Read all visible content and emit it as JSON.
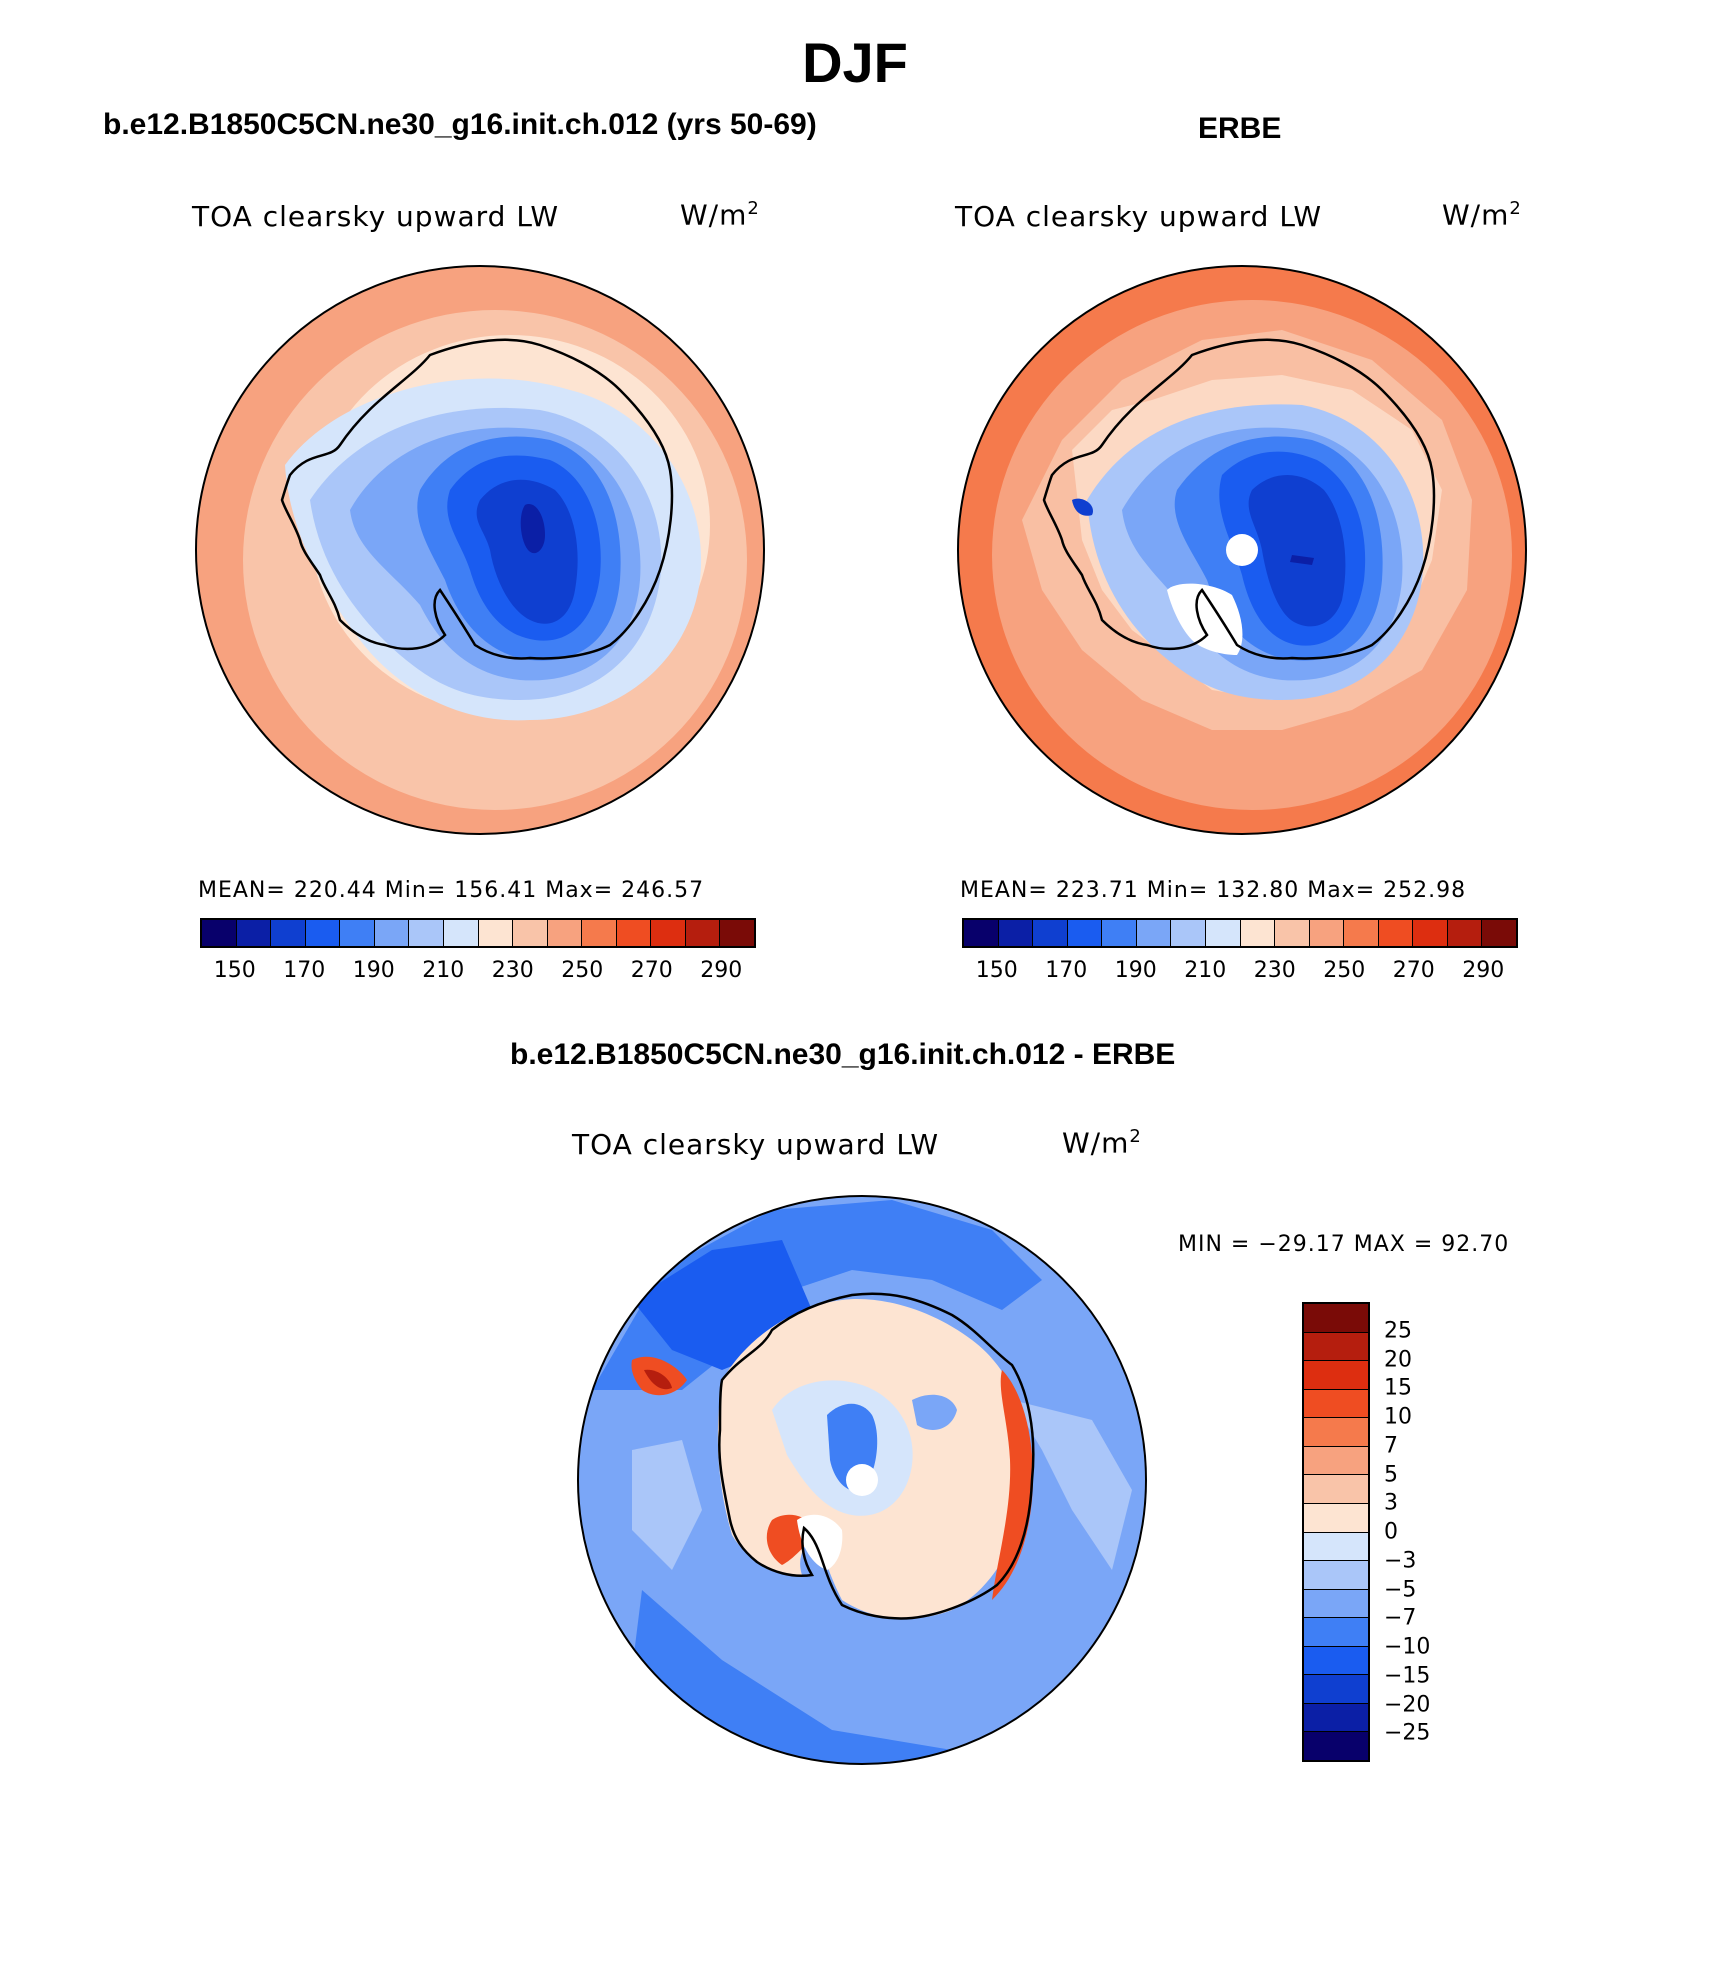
{
  "page_title": "DJF",
  "palette_levels": [
    "#08006b",
    "#0b1fa6",
    "#0f3fd0",
    "#1a5cf0",
    "#3f7ff5",
    "#7aa6f7",
    "#aac6f9",
    "#d5e5fb",
    "#fde4d2",
    "#f9c4a9",
    "#f7a27f",
    "#f57a4c",
    "#ef4d22",
    "#dd2e10",
    "#b51e0e",
    "#7a0b07"
  ],
  "diff_palette_levels": [
    "#7a0b07",
    "#b51e0e",
    "#dd2e10",
    "#ef4d22",
    "#f57a4c",
    "#f7a27f",
    "#f9c4a9",
    "#fde4d2",
    "#d5e5fb",
    "#aac6f9",
    "#7aa6f7",
    "#3f7ff5",
    "#1a5cf0",
    "#0f3fd0",
    "#0b1fa6",
    "#08006b"
  ],
  "panels": {
    "model": {
      "title": "b.e12.B1850C5CN.ne30_g16.init.ch.012 (yrs 50-69)",
      "variable": "TOA clearsky upward LW",
      "units_base": "W/m",
      "units_exp": "2",
      "stats": "MEAN= 220.44   Min= 156.41   Max= 246.57",
      "colorbar_ticks": [
        "150",
        "170",
        "190",
        "210",
        "230",
        "250",
        "270",
        "290"
      ]
    },
    "obs": {
      "title": "ERBE",
      "variable": "TOA clearsky upward LW",
      "units_base": "W/m",
      "units_exp": "2",
      "stats": "MEAN= 223.71   Min= 132.80   Max= 252.98",
      "colorbar_ticks": [
        "150",
        "170",
        "190",
        "210",
        "230",
        "250",
        "270",
        "290"
      ]
    },
    "diff": {
      "title": "b.e12.B1850C5CN.ne30_g16.init.ch.012 - ERBE",
      "variable": "TOA clearsky upward LW",
      "units_base": "W/m",
      "units_exp": "2",
      "stats": "MIN = −29.17 MAX =  92.70",
      "colorbar_ticks": [
        "25",
        "20",
        "15",
        "10",
        "7",
        "5",
        "3",
        "0",
        "−3",
        "−5",
        "−7",
        "−10",
        "−15",
        "−20",
        "−25"
      ]
    }
  },
  "map_colors": {
    "ocean_outer": "#f7a27f",
    "ocean_inner": "#f9c4a9",
    "coast_band": "#fde4d2",
    "ice_edge": "#d5e5fb",
    "ice_1": "#aac6f9",
    "ice_2": "#7aa6f7",
    "ice_3": "#3f7ff5",
    "ice_4": "#1a5cf0",
    "ice_5": "#0f3fd0",
    "ice_core": "#0b1fa6",
    "diff_ocean": "#7aa6f7",
    "diff_ocean_dark": "#3f7ff5",
    "diff_land": "#fde4d2",
    "diff_hot": "#ef4d22"
  }
}
